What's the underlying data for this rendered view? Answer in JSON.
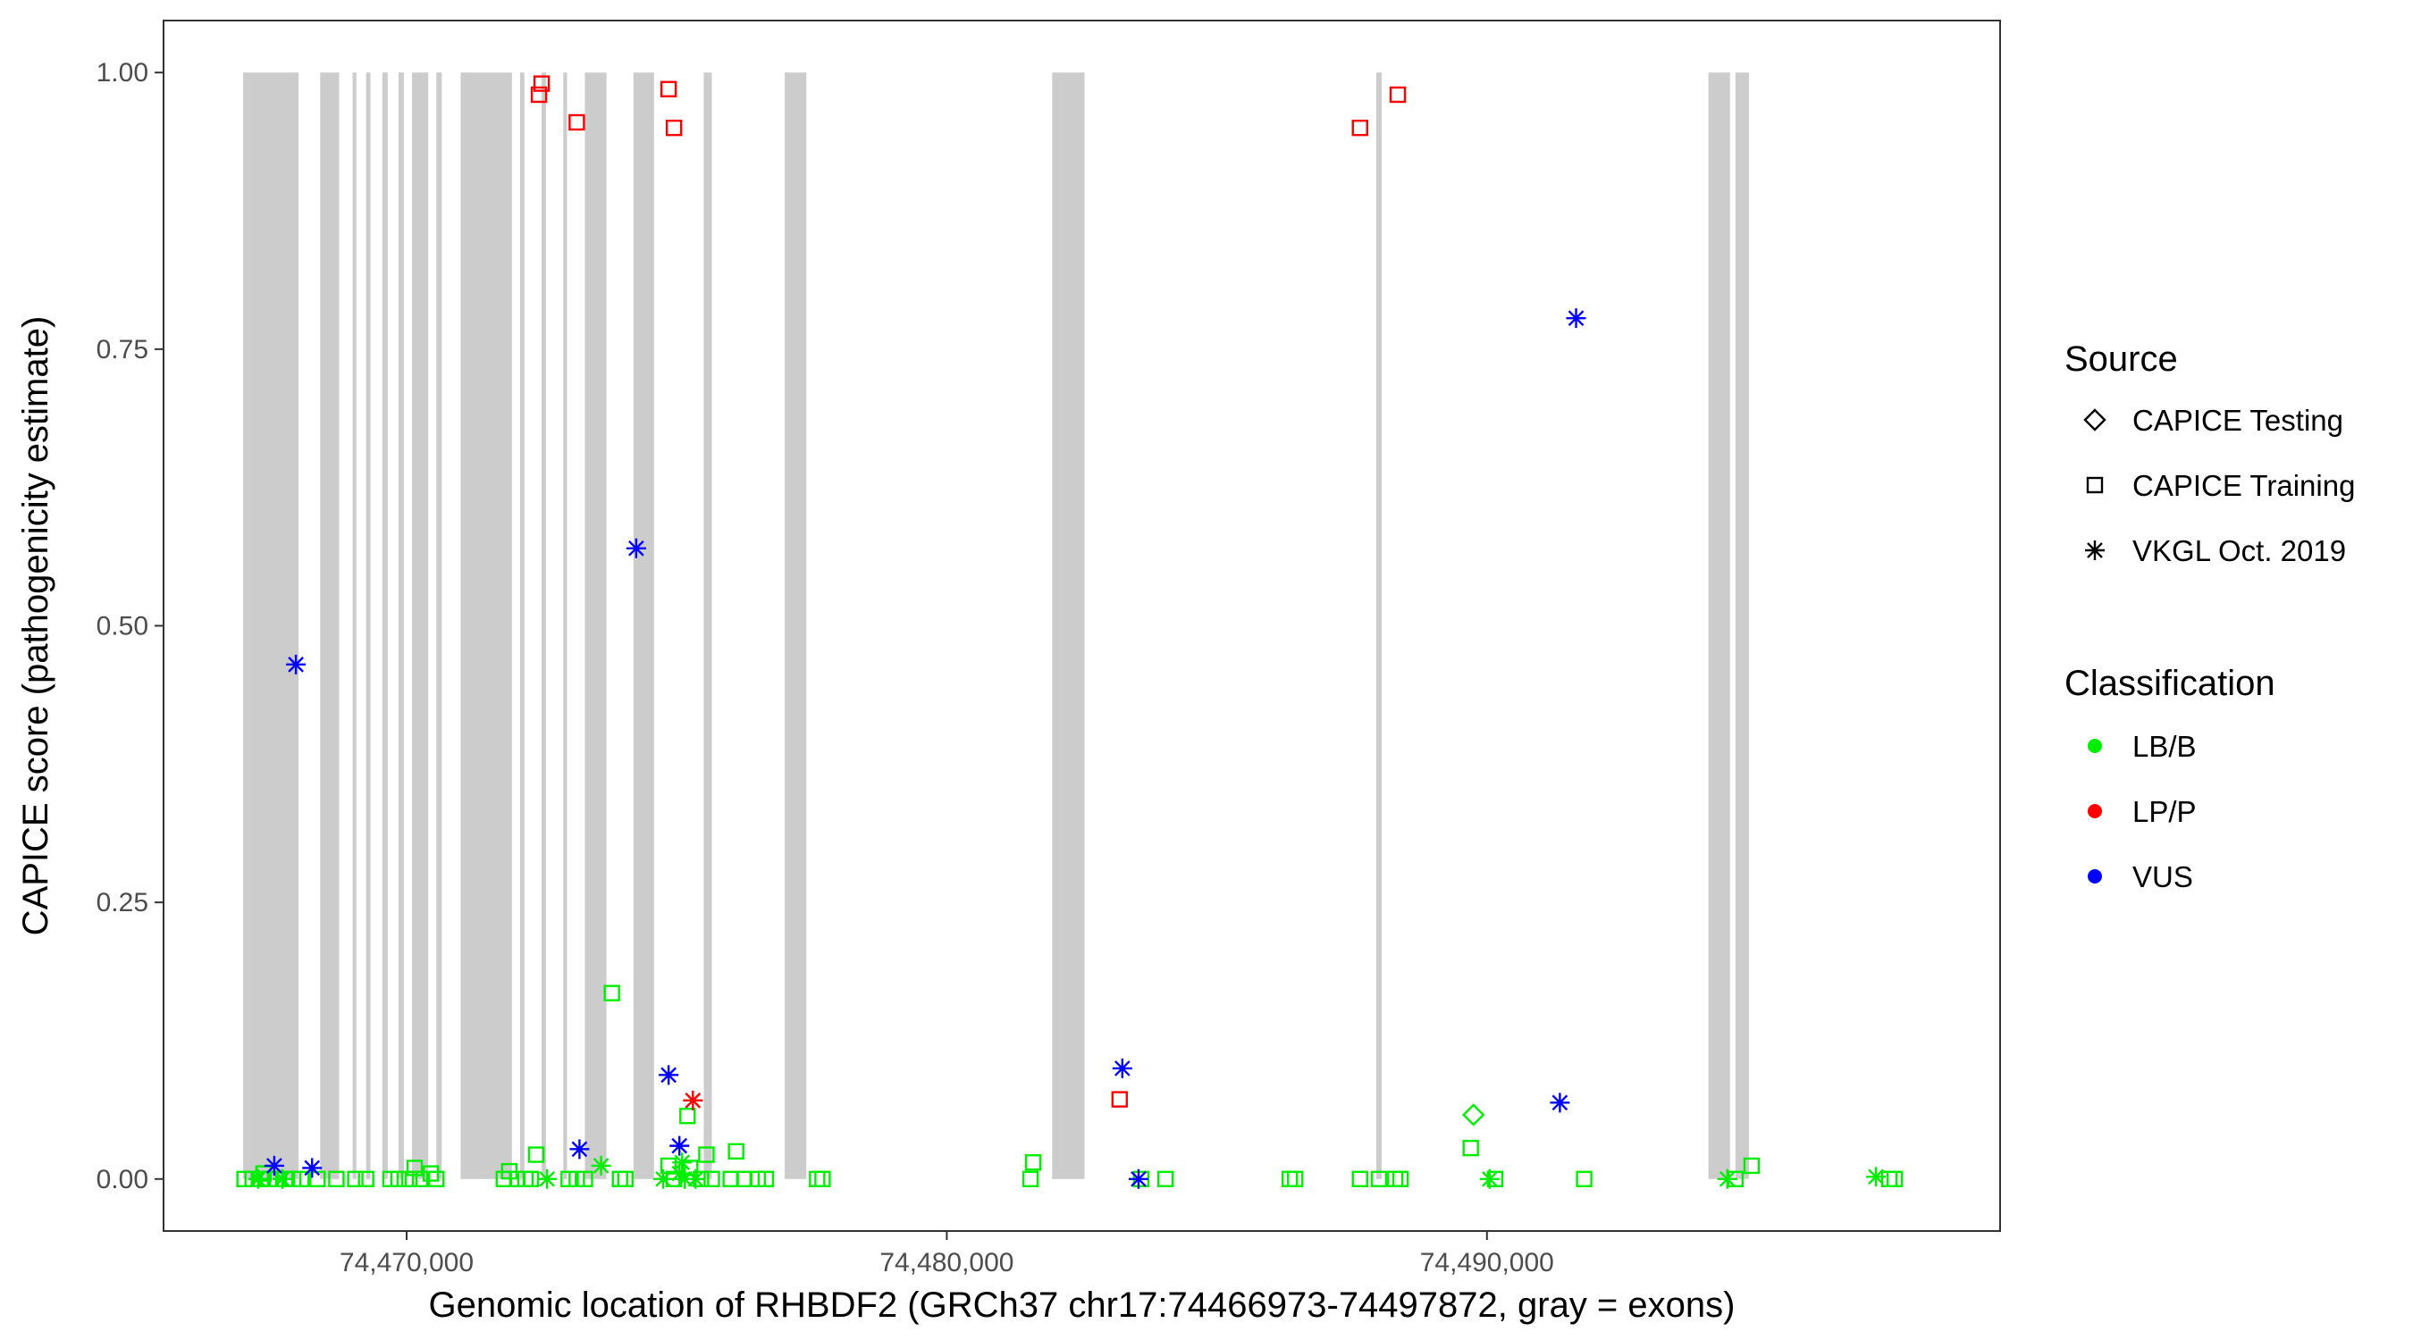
{
  "chart_data": {
    "type": "scatter",
    "title": "",
    "xlabel": "Genomic location of RHBDF2 (GRCh37 chr17:74466973-74497872, gray = exons)",
    "ylabel": "CAPICE score (pathogenicity estimate)",
    "xlim": [
      74465500,
      74499500
    ],
    "ylim": [
      -0.047,
      1.047
    ],
    "x_ticks": [
      74470000,
      74480000,
      74490000
    ],
    "x_tick_labels": [
      "74,470,000",
      "74,480,000",
      "74,490,000"
    ],
    "y_ticks": [
      0,
      0.25,
      0.5,
      0.75,
      1
    ],
    "y_tick_labels": [
      "0.00",
      "0.25",
      "0.50",
      "0.75",
      "1.00"
    ],
    "grid": false,
    "exons": [
      [
        74466973,
        74468000
      ],
      [
        74468400,
        74468750
      ],
      [
        74469000,
        74469070
      ],
      [
        74469250,
        74469330
      ],
      [
        74469550,
        74469650
      ],
      [
        74469850,
        74469950
      ],
      [
        74470100,
        74470400
      ],
      [
        74470550,
        74470650
      ],
      [
        74471000,
        74471950
      ],
      [
        74472100,
        74472180
      ],
      [
        74472500,
        74472580
      ],
      [
        74472900,
        74472970
      ],
      [
        74473300,
        74473700
      ],
      [
        74474200,
        74474580
      ],
      [
        74475500,
        74475650
      ],
      [
        74477000,
        74477400
      ],
      [
        74481950,
        74482550
      ],
      [
        74487950,
        74488050
      ],
      [
        74494100,
        74494500
      ],
      [
        74494600,
        74494850
      ]
    ],
    "exon_color": "#cccccc",
    "legend": {
      "position": "right",
      "source_title": "Source",
      "source_items": [
        {
          "label": "CAPICE Testing",
          "shape": "diamond"
        },
        {
          "label": "CAPICE Training",
          "shape": "square"
        },
        {
          "label": "VKGL Oct. 2019",
          "shape": "asterisk"
        }
      ],
      "class_title": "Classification",
      "class_items": [
        {
          "label": "LB/B",
          "color": "#00ee00"
        },
        {
          "label": "LP/P",
          "color": "#ff0000"
        },
        {
          "label": "VUS",
          "color": "#0000ff"
        }
      ]
    },
    "series": [
      {
        "name": "LB/B",
        "color": "#00ee00",
        "points": [
          {
            "x": 74467000,
            "y": 0.0,
            "shape": "square"
          },
          {
            "x": 74467150,
            "y": 0.0,
            "shape": "square"
          },
          {
            "x": 74467300,
            "y": 0.0,
            "shape": "square"
          },
          {
            "x": 74467450,
            "y": 0.0,
            "shape": "square"
          },
          {
            "x": 74467600,
            "y": 0.0,
            "shape": "square"
          },
          {
            "x": 74467750,
            "y": 0.0,
            "shape": "square"
          },
          {
            "x": 74467900,
            "y": 0.0,
            "shape": "square"
          },
          {
            "x": 74468050,
            "y": 0.0,
            "shape": "square"
          },
          {
            "x": 74467350,
            "y": 0.005,
            "shape": "square"
          },
          {
            "x": 74467250,
            "y": 0.0,
            "shape": "asterisk"
          },
          {
            "x": 74467700,
            "y": 0.0,
            "shape": "asterisk"
          },
          {
            "x": 74468350,
            "y": 0.0,
            "shape": "square"
          },
          {
            "x": 74468700,
            "y": 0.0,
            "shape": "square"
          },
          {
            "x": 74469050,
            "y": 0.0,
            "shape": "square"
          },
          {
            "x": 74469250,
            "y": 0.0,
            "shape": "square"
          },
          {
            "x": 74469700,
            "y": 0.0,
            "shape": "square"
          },
          {
            "x": 74469850,
            "y": 0.0,
            "shape": "square"
          },
          {
            "x": 74470050,
            "y": 0.0,
            "shape": "square"
          },
          {
            "x": 74470150,
            "y": 0.01,
            "shape": "square"
          },
          {
            "x": 74470250,
            "y": 0.0,
            "shape": "square"
          },
          {
            "x": 74470450,
            "y": 0.005,
            "shape": "square"
          },
          {
            "x": 74470550,
            "y": 0.0,
            "shape": "square"
          },
          {
            "x": 74471800,
            "y": 0.0,
            "shape": "square"
          },
          {
            "x": 74471900,
            "y": 0.007,
            "shape": "square"
          },
          {
            "x": 74472050,
            "y": 0.0,
            "shape": "square"
          },
          {
            "x": 74472200,
            "y": 0.0,
            "shape": "square"
          },
          {
            "x": 74472300,
            "y": 0.0,
            "shape": "square"
          },
          {
            "x": 74472400,
            "y": 0.022,
            "shape": "square"
          },
          {
            "x": 74472600,
            "y": 0.0,
            "shape": "asterisk"
          },
          {
            "x": 74473000,
            "y": 0.0,
            "shape": "square"
          },
          {
            "x": 74473150,
            "y": 0.0,
            "shape": "square"
          },
          {
            "x": 74473300,
            "y": 0.0,
            "shape": "square"
          },
          {
            "x": 74473600,
            "y": 0.012,
            "shape": "asterisk"
          },
          {
            "x": 74473800,
            "y": 0.168,
            "shape": "square"
          },
          {
            "x": 74473950,
            "y": 0.0,
            "shape": "square"
          },
          {
            "x": 74474050,
            "y": 0.0,
            "shape": "square"
          },
          {
            "x": 74474750,
            "y": 0.0,
            "shape": "asterisk"
          },
          {
            "x": 74474850,
            "y": 0.012,
            "shape": "square"
          },
          {
            "x": 74474950,
            "y": 0.0,
            "shape": "square"
          },
          {
            "x": 74475050,
            "y": 0.005,
            "shape": "asterisk"
          },
          {
            "x": 74475100,
            "y": 0.015,
            "shape": "asterisk"
          },
          {
            "x": 74475150,
            "y": 0.0,
            "shape": "asterisk"
          },
          {
            "x": 74475200,
            "y": 0.057,
            "shape": "square"
          },
          {
            "x": 74475250,
            "y": 0.01,
            "shape": "square"
          },
          {
            "x": 74475350,
            "y": 0.0,
            "shape": "asterisk"
          },
          {
            "x": 74475450,
            "y": 0.0,
            "shape": "square"
          },
          {
            "x": 74475550,
            "y": 0.022,
            "shape": "square"
          },
          {
            "x": 74475650,
            "y": 0.0,
            "shape": "square"
          },
          {
            "x": 74476000,
            "y": 0.0,
            "shape": "square"
          },
          {
            "x": 74476100,
            "y": 0.025,
            "shape": "square"
          },
          {
            "x": 74476250,
            "y": 0.0,
            "shape": "square"
          },
          {
            "x": 74476500,
            "y": 0.0,
            "shape": "square"
          },
          {
            "x": 74476650,
            "y": 0.0,
            "shape": "square"
          },
          {
            "x": 74477600,
            "y": 0.0,
            "shape": "square"
          },
          {
            "x": 74477700,
            "y": 0.0,
            "shape": "square"
          },
          {
            "x": 74481550,
            "y": 0.0,
            "shape": "square"
          },
          {
            "x": 74481600,
            "y": 0.015,
            "shape": "square"
          },
          {
            "x": 74483600,
            "y": 0.0,
            "shape": "square"
          },
          {
            "x": 74484050,
            "y": 0.0,
            "shape": "square"
          },
          {
            "x": 74486350,
            "y": 0.0,
            "shape": "square"
          },
          {
            "x": 74486450,
            "y": 0.0,
            "shape": "square"
          },
          {
            "x": 74487650,
            "y": 0.0,
            "shape": "square"
          },
          {
            "x": 74488000,
            "y": 0.0,
            "shape": "square"
          },
          {
            "x": 74488300,
            "y": 0.0,
            "shape": "square"
          },
          {
            "x": 74488400,
            "y": 0.0,
            "shape": "square"
          },
          {
            "x": 74489750,
            "y": 0.058,
            "shape": "diamond"
          },
          {
            "x": 74489700,
            "y": 0.028,
            "shape": "square"
          },
          {
            "x": 74490050,
            "y": 0.0,
            "shape": "asterisk"
          },
          {
            "x": 74490150,
            "y": 0.0,
            "shape": "square"
          },
          {
            "x": 74491800,
            "y": 0.0,
            "shape": "square"
          },
          {
            "x": 74494450,
            "y": 0.0,
            "shape": "asterisk"
          },
          {
            "x": 74494600,
            "y": 0.0,
            "shape": "square"
          },
          {
            "x": 74494900,
            "y": 0.012,
            "shape": "square"
          },
          {
            "x": 74497200,
            "y": 0.002,
            "shape": "asterisk"
          },
          {
            "x": 74497450,
            "y": 0.0,
            "shape": "square"
          },
          {
            "x": 74497550,
            "y": 0.0,
            "shape": "square"
          }
        ]
      },
      {
        "name": "LP/P",
        "color": "#ff0000",
        "points": [
          {
            "x": 74472450,
            "y": 0.98,
            "shape": "square"
          },
          {
            "x": 74472500,
            "y": 0.99,
            "shape": "square"
          },
          {
            "x": 74473150,
            "y": 0.955,
            "shape": "square"
          },
          {
            "x": 74474850,
            "y": 0.985,
            "shape": "square"
          },
          {
            "x": 74474950,
            "y": 0.95,
            "shape": "square"
          },
          {
            "x": 74475300,
            "y": 0.071,
            "shape": "asterisk"
          },
          {
            "x": 74483200,
            "y": 0.072,
            "shape": "square"
          },
          {
            "x": 74487650,
            "y": 0.95,
            "shape": "square"
          },
          {
            "x": 74488350,
            "y": 0.98,
            "shape": "square"
          }
        ]
      },
      {
        "name": "VUS",
        "color": "#0000ff",
        "points": [
          {
            "x": 74467550,
            "y": 0.012,
            "shape": "asterisk"
          },
          {
            "x": 74468250,
            "y": 0.01,
            "shape": "asterisk"
          },
          {
            "x": 74467950,
            "y": 0.465,
            "shape": "asterisk"
          },
          {
            "x": 74473200,
            "y": 0.027,
            "shape": "asterisk"
          },
          {
            "x": 74474250,
            "y": 0.57,
            "shape": "asterisk"
          },
          {
            "x": 74474850,
            "y": 0.094,
            "shape": "asterisk"
          },
          {
            "x": 74475050,
            "y": 0.03,
            "shape": "asterisk"
          },
          {
            "x": 74483250,
            "y": 0.1,
            "shape": "asterisk"
          },
          {
            "x": 74483550,
            "y": 0.0,
            "shape": "asterisk"
          },
          {
            "x": 74491350,
            "y": 0.069,
            "shape": "asterisk"
          },
          {
            "x": 74491650,
            "y": 0.778,
            "shape": "asterisk"
          }
        ]
      }
    ]
  }
}
